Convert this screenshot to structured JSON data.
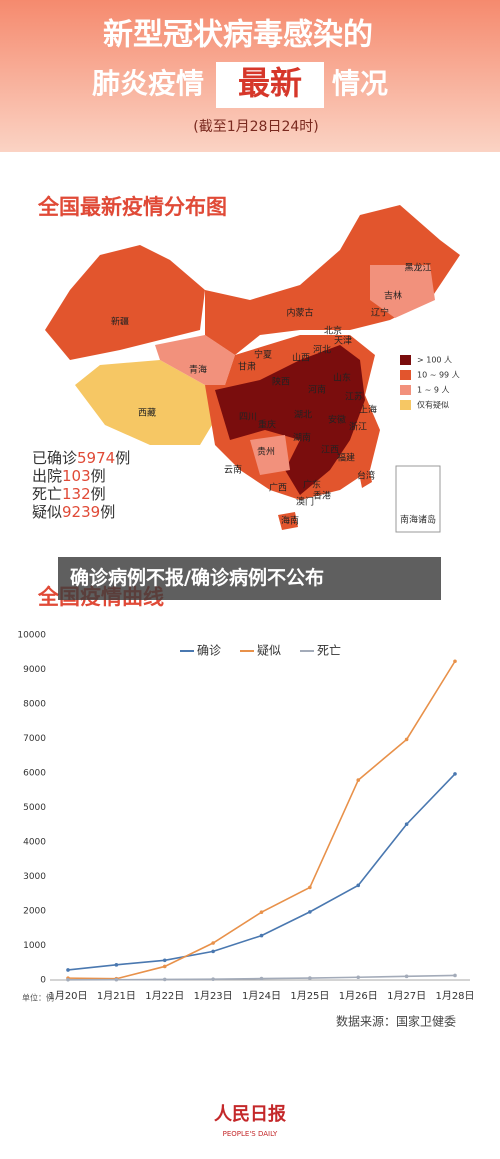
{
  "header": {
    "line1": "新型冠状病毒感染的",
    "line2a": "肺炎疫情",
    "highlight": "最新",
    "line2b": "情况",
    "date": "(截至1月28日24时)"
  },
  "map": {
    "title": "全国最新疫情分布图",
    "labels": [
      "新疆",
      "西藏",
      "青海",
      "甘肃",
      "内蒙古",
      "黑龙江",
      "吉林",
      "辽宁",
      "北京",
      "天津",
      "河北",
      "山西",
      "宁夏",
      "陕西",
      "河南",
      "山东",
      "江苏",
      "上海",
      "浙江",
      "安徽",
      "湖北",
      "重庆",
      "四川",
      "贵州",
      "云南",
      "湖南",
      "江西",
      "福建",
      "广西",
      "广东",
      "香港",
      "澳门",
      "台湾",
      "海南"
    ],
    "legend": [
      {
        "label": "> 100 人",
        "color": "#7a0d0d"
      },
      {
        "label": "10 ~ 99 人",
        "color": "#e2552d"
      },
      {
        "label": "1 ~ 9 人",
        "color": "#f2917c"
      },
      {
        "label": "仅有疑似",
        "color": "#f6c764"
      }
    ],
    "inset": "南海诸岛"
  },
  "stats": [
    {
      "prefix": "已确诊",
      "number": 5974,
      "suffix": "例"
    },
    {
      "prefix": "出院",
      "number": 103,
      "suffix": "例"
    },
    {
      "prefix": "死亡",
      "number": 132,
      "suffix": "例"
    },
    {
      "prefix": "疑似",
      "number": 9239,
      "suffix": "例"
    }
  ],
  "banner": "确诊病例不报/确诊病例不公布",
  "chart_data": {
    "type": "line",
    "title": "全国疫情曲线",
    "categories": [
      "1月20日",
      "1月21日",
      "1月22日",
      "1月23日",
      "1月24日",
      "1月25日",
      "1月26日",
      "1月27日",
      "1月28日"
    ],
    "series": [
      {
        "name": "确诊",
        "color": "#4a78b0",
        "values": [
          291,
          440,
          571,
          830,
          1287,
          1975,
          2744,
          4515,
          5974
        ]
      },
      {
        "name": "疑似",
        "color": "#e8914a",
        "values": [
          54,
          37,
          393,
          1072,
          1965,
          2684,
          5794,
          6973,
          9239
        ]
      },
      {
        "name": "死亡",
        "color": "#a3abb9",
        "values": [
          6,
          9,
          17,
          25,
          41,
          56,
          80,
          106,
          132
        ]
      }
    ],
    "ylim": [
      0,
      10000
    ],
    "yticks": [
      0,
      1000,
      2000,
      3000,
      4000,
      5000,
      6000,
      7000,
      8000,
      9000,
      10000
    ],
    "grid": false,
    "unit": "单位：例",
    "source": "数据来源：国家卫健委"
  },
  "footer": {
    "logo": "人民日报",
    "sub": "PEOPLE'S DAILY"
  }
}
